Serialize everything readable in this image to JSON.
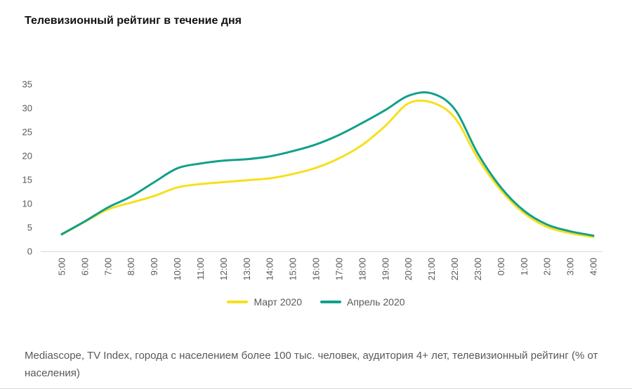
{
  "chart_data": {
    "type": "line",
    "title": "Телевизионный рейтинг в течение дня",
    "categories": [
      "5:00",
      "6:00",
      "7:00",
      "8:00",
      "9:00",
      "10:00",
      "11:00",
      "12:00",
      "13:00",
      "14:00",
      "15:00",
      "16:00",
      "17:00",
      "18:00",
      "19:00",
      "20:00",
      "21:00",
      "22:00",
      "23:00",
      "0:00",
      "1:00",
      "2:00",
      "3:00",
      "4:00"
    ],
    "series": [
      {
        "name": "Март 2020",
        "color": "#f6e01c",
        "values": [
          3.5,
          6.2,
          8.8,
          10.2,
          11.6,
          13.4,
          14.1,
          14.5,
          14.9,
          15.3,
          16.2,
          17.5,
          19.5,
          22.3,
          26.3,
          31.0,
          31.2,
          28.0,
          19.5,
          12.8,
          8.0,
          5.1,
          3.8,
          3.0
        ]
      },
      {
        "name": "Апрель 2020",
        "color": "#12a08b",
        "values": [
          3.6,
          6.3,
          9.2,
          11.5,
          14.5,
          17.4,
          18.4,
          19.0,
          19.3,
          19.9,
          21.0,
          22.4,
          24.4,
          26.9,
          29.6,
          32.6,
          33.1,
          29.8,
          20.5,
          13.4,
          8.5,
          5.6,
          4.2,
          3.3
        ]
      }
    ],
    "ylim": [
      0,
      35
    ],
    "yticks": [
      0,
      5,
      10,
      15,
      20,
      25,
      30,
      35
    ],
    "grid": false,
    "legend_position": "bottom",
    "axis_color": "#d9d9d9",
    "tick_label_color": "#595959",
    "line_width": 3
  },
  "footer": {
    "text": "Mediascope, TV Index, города с населением более 100 тыс. человек, аудитория 4+ лет, телевизионный рейтинг (% от населения)"
  }
}
